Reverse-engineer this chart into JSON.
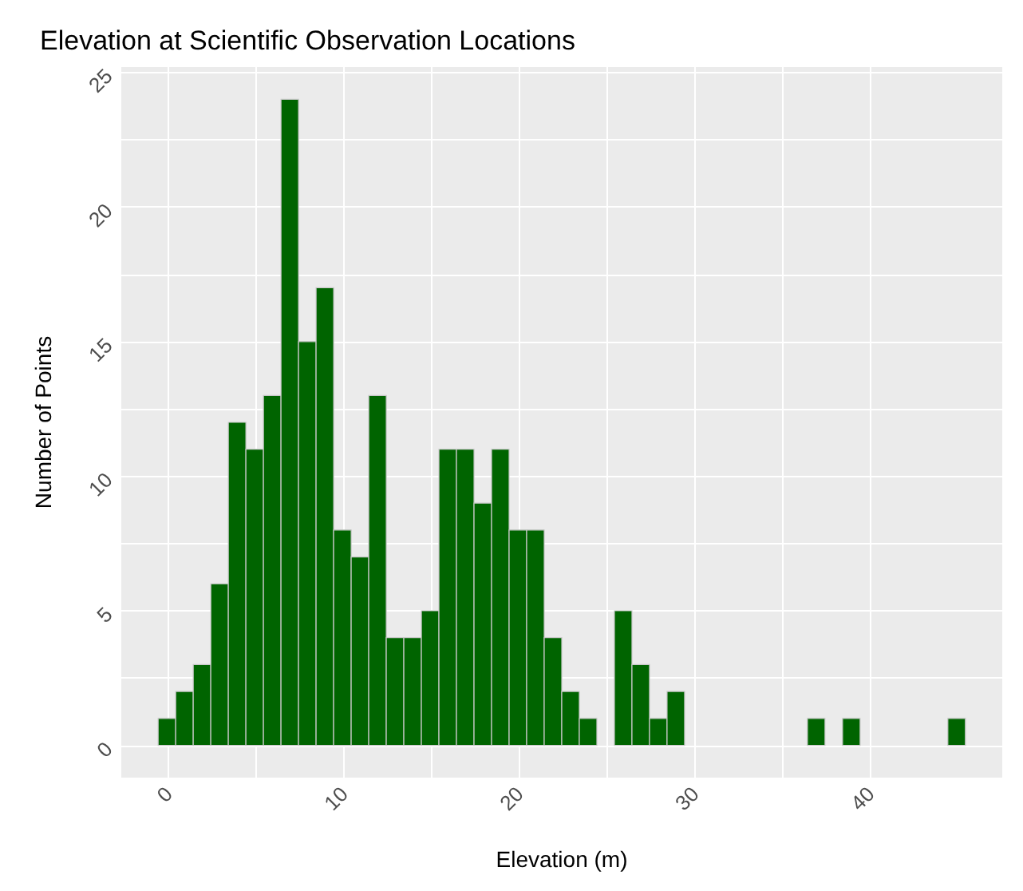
{
  "chart_data": {
    "type": "histogram",
    "title": "Elevation at Scientific Observation Locations",
    "xlabel": "Elevation (m)",
    "ylabel": "Number of Points",
    "bins": [
      -0.6,
      0.4,
      1.4,
      2.4,
      3.4,
      4.4,
      5.4,
      6.4,
      7.4,
      8.4,
      9.4,
      10.4,
      11.4,
      12.4,
      13.4,
      14.4,
      15.4,
      16.4,
      17.4,
      18.4,
      19.4,
      20.4,
      21.4,
      22.4,
      23.4,
      24.4,
      25.4,
      26.4,
      27.4,
      28.4,
      29.4,
      30.4,
      31.4,
      32.4,
      33.4,
      34.4,
      35.4,
      36.4,
      37.4,
      38.4,
      39.4,
      40.4,
      41.4,
      42.4,
      43.4,
      44.4,
      45.4
    ],
    "values": [
      1,
      2,
      3,
      6,
      12,
      11,
      13,
      24,
      15,
      17,
      8,
      7,
      13,
      4,
      4,
      5,
      11,
      11,
      9,
      11,
      8,
      8,
      4,
      2,
      1,
      0,
      5,
      3,
      1,
      2,
      0,
      0,
      0,
      0,
      0,
      0,
      0,
      1,
      0,
      1,
      0,
      0,
      0,
      0,
      0,
      1
    ],
    "color": "#006400",
    "xlim": [
      -2.7,
      47.5
    ],
    "ylim": [
      -1.2,
      25.2
    ],
    "xticks": [
      0,
      10,
      20,
      30,
      40
    ],
    "yticks": [
      0,
      5,
      10,
      15,
      20,
      25
    ],
    "grid": true
  }
}
